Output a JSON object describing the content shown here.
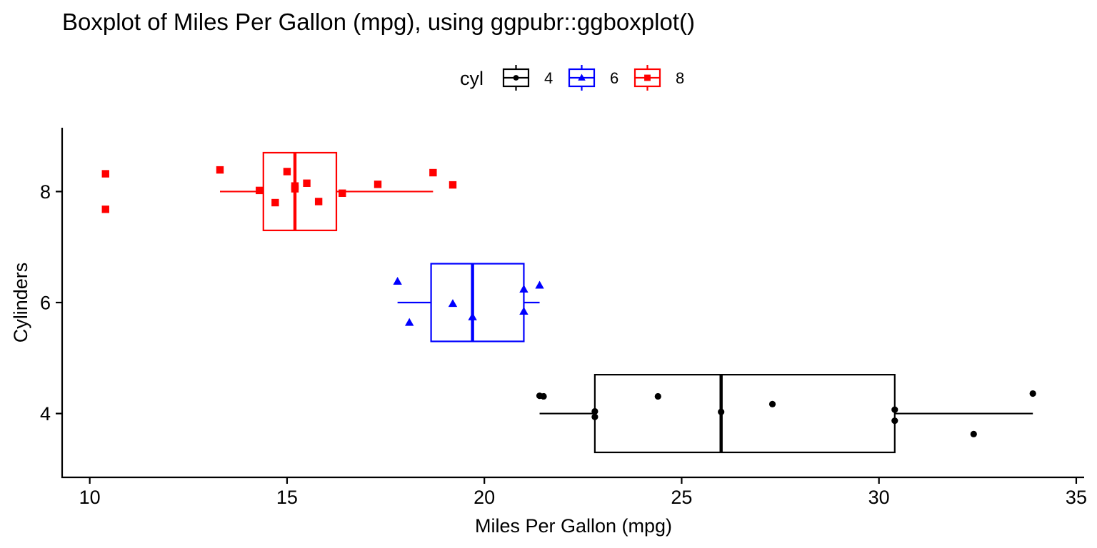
{
  "chart_data": {
    "type": "boxplot",
    "orientation": "horizontal",
    "title": "Boxplot of Miles Per Gallon (mpg), using ggpubr::ggboxplot()",
    "xlabel": "Miles Per Gallon (mpg)",
    "ylabel": "Cylinders",
    "xlim": [
      9.3,
      35.2
    ],
    "ylim": [
      2.85,
      9.15
    ],
    "x_ticks": [
      10,
      15,
      20,
      25,
      30,
      35
    ],
    "y_ticks": [
      4,
      6,
      8
    ],
    "grid": false,
    "legend": {
      "title": "cyl",
      "position": "top"
    },
    "series": [
      {
        "name": "4",
        "y": 4,
        "color": "#000000",
        "marker": "circle",
        "whisker_low": 21.4,
        "q1": 22.8,
        "median": 26.0,
        "q3": 30.4,
        "whisker_high": 33.9,
        "points": [
          [
            21.4,
            4.32
          ],
          [
            21.5,
            4.31
          ],
          [
            22.8,
            4.04
          ],
          [
            22.8,
            3.94
          ],
          [
            24.4,
            4.31
          ],
          [
            26.0,
            4.03
          ],
          [
            27.3,
            4.17
          ],
          [
            30.4,
            4.07
          ],
          [
            30.4,
            3.87
          ],
          [
            32.4,
            3.63
          ],
          [
            33.9,
            4.36
          ]
        ]
      },
      {
        "name": "6",
        "y": 6,
        "color": "#0000FF",
        "marker": "triangle",
        "whisker_low": 17.8,
        "q1": 18.65,
        "median": 19.7,
        "q3": 21.0,
        "whisker_high": 21.4,
        "points": [
          [
            17.8,
            6.38
          ],
          [
            18.1,
            5.64
          ],
          [
            19.2,
            5.98
          ],
          [
            19.7,
            5.74
          ],
          [
            21.0,
            6.24
          ],
          [
            21.0,
            5.84
          ],
          [
            21.4,
            6.31
          ]
        ]
      },
      {
        "name": "8",
        "y": 8,
        "color": "#FF0000",
        "marker": "square",
        "whisker_low": 13.3,
        "q1": 14.4,
        "median": 15.2,
        "q3": 16.25,
        "whisker_high": 18.7,
        "points": [
          [
            10.4,
            8.32
          ],
          [
            10.4,
            7.68
          ],
          [
            13.3,
            8.39
          ],
          [
            14.3,
            8.02
          ],
          [
            14.7,
            7.8
          ],
          [
            15.0,
            8.36
          ],
          [
            15.2,
            8.05
          ],
          [
            15.2,
            8.1
          ],
          [
            15.5,
            8.15
          ],
          [
            15.8,
            7.82
          ],
          [
            16.4,
            7.97
          ],
          [
            17.3,
            8.13
          ],
          [
            18.7,
            8.34
          ],
          [
            19.2,
            8.12
          ]
        ]
      }
    ]
  }
}
